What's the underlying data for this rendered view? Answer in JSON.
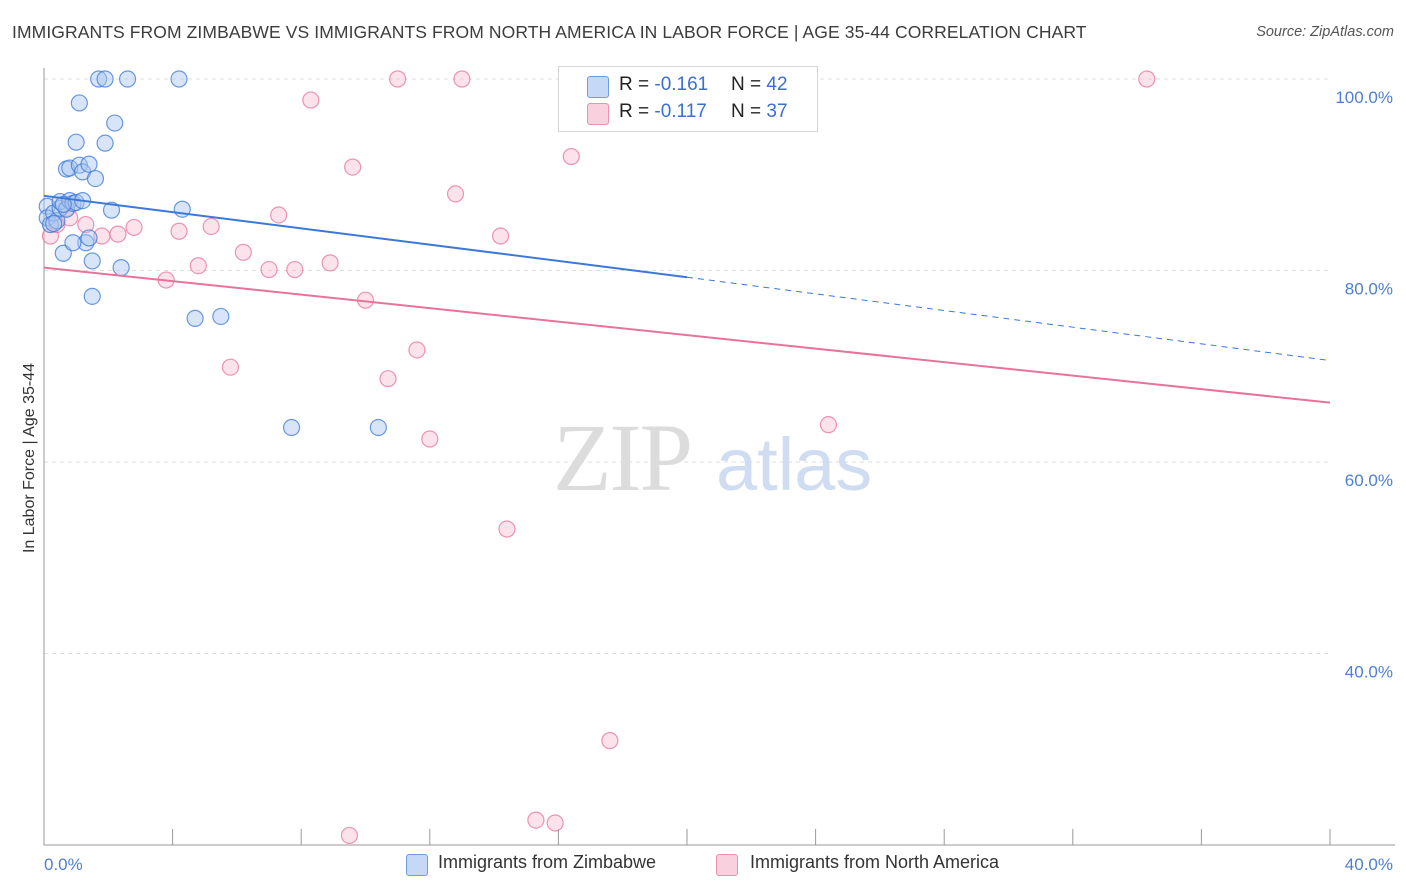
{
  "header": {
    "title": "IMMIGRANTS FROM ZIMBABWE VS IMMIGRANTS FROM NORTH AMERICA IN LABOR FORCE | AGE 35-44 CORRELATION CHART",
    "source": "Source: ZipAtlas.com"
  },
  "legend_top": {
    "rows": [
      {
        "r_label": "R = ",
        "r_value": "-0.161",
        "n_label": "N = ",
        "n_value": "42"
      },
      {
        "r_label": "R = ",
        "r_value": "-0.117",
        "n_label": "N = ",
        "n_value": "37"
      }
    ]
  },
  "legend_bottom": {
    "items": [
      {
        "label": "Immigrants from Zimbabwe"
      },
      {
        "label": "Immigrants from North America"
      }
    ]
  },
  "watermark": {
    "zip": "ZIP",
    "atlas": "atlas"
  },
  "colors": {
    "blue": "#3b78d8",
    "blue_fill": "#a9c6f0",
    "pink": "#e8739a",
    "pink_fill": "#f6bfd2",
    "tick_text": "#4f7fd0",
    "grid": "#dddddd"
  },
  "chart_data": {
    "type": "scatter",
    "ylabel": "In Labor Force | Age 35-44",
    "xlim": [
      0,
      40
    ],
    "ylim": [
      20,
      100
    ],
    "x_tick_labels": [
      "0.0%",
      "40.0%"
    ],
    "y_ticks": [
      {
        "value": 100,
        "label": "100.0%"
      },
      {
        "value": 80,
        "label": "80.0%"
      },
      {
        "value": 60,
        "label": "60.0%"
      },
      {
        "value": 40,
        "label": "40.0%"
      }
    ],
    "grid": true,
    "series": [
      {
        "name": "Immigrants from Zimbabwe",
        "color": "#3b78d8",
        "fill": "#a9c6f0",
        "points": [
          [
            0.1,
            86.7
          ],
          [
            0.1,
            85.5
          ],
          [
            0.2,
            84.8
          ],
          [
            0.3,
            86.0
          ],
          [
            0.4,
            85.2
          ],
          [
            0.5,
            86.5
          ],
          [
            0.5,
            87.2
          ],
          [
            0.6,
            81.8
          ],
          [
            0.7,
            86.4
          ],
          [
            0.8,
            87.3
          ],
          [
            0.9,
            87.0
          ],
          [
            1.0,
            87.1
          ],
          [
            0.7,
            90.6
          ],
          [
            0.8,
            90.7
          ],
          [
            1.0,
            93.4
          ],
          [
            1.1,
            91.0
          ],
          [
            1.2,
            90.3
          ],
          [
            1.3,
            82.9
          ],
          [
            1.1,
            97.5
          ],
          [
            1.4,
            91.1
          ],
          [
            1.5,
            81.0
          ],
          [
            1.5,
            77.3
          ],
          [
            1.6,
            89.6
          ],
          [
            1.7,
            100.0
          ],
          [
            1.9,
            93.3
          ],
          [
            1.9,
            100.0
          ],
          [
            2.1,
            86.3
          ],
          [
            2.2,
            95.4
          ],
          [
            2.4,
            80.3
          ],
          [
            2.6,
            100.0
          ],
          [
            4.2,
            100.0
          ],
          [
            4.3,
            86.4
          ],
          [
            4.7,
            75.0
          ],
          [
            5.5,
            75.2
          ],
          [
            7.7,
            63.6
          ],
          [
            10.4,
            63.6
          ],
          [
            16.5,
            100.0
          ],
          [
            1.4,
            83.4
          ],
          [
            0.3,
            84.9
          ],
          [
            0.6,
            86.9
          ],
          [
            1.2,
            87.3
          ],
          [
            0.9,
            82.9
          ]
        ],
        "trend": {
          "x_start": 0,
          "y_start": 87.8,
          "x_solid_end": 20,
          "y_solid_end": 79.3,
          "x_end": 40,
          "y_end": 70.6
        }
      },
      {
        "name": "Immigrants from North America",
        "color": "#e8739a",
        "fill": "#f6bfd2",
        "points": [
          [
            0.2,
            83.6
          ],
          [
            0.4,
            84.8
          ],
          [
            0.7,
            86.5
          ],
          [
            0.8,
            85.5
          ],
          [
            1.3,
            84.8
          ],
          [
            1.8,
            83.6
          ],
          [
            2.3,
            83.8
          ],
          [
            2.8,
            84.5
          ],
          [
            3.8,
            79.0
          ],
          [
            4.2,
            84.1
          ],
          [
            4.8,
            80.5
          ],
          [
            5.2,
            84.6
          ],
          [
            5.8,
            69.9
          ],
          [
            6.2,
            81.9
          ],
          [
            7.0,
            80.1
          ],
          [
            7.3,
            85.8
          ],
          [
            7.8,
            80.1
          ],
          [
            8.3,
            97.8
          ],
          [
            8.9,
            80.8
          ],
          [
            9.5,
            21.0
          ],
          [
            9.6,
            90.8
          ],
          [
            10.0,
            76.9
          ],
          [
            10.7,
            68.7
          ],
          [
            11.0,
            100.0
          ],
          [
            11.6,
            71.7
          ],
          [
            12.0,
            62.4
          ],
          [
            12.8,
            88.0
          ],
          [
            13.0,
            100.0
          ],
          [
            14.2,
            83.6
          ],
          [
            14.4,
            53.0
          ],
          [
            15.3,
            22.6
          ],
          [
            15.9,
            22.3
          ],
          [
            16.4,
            91.9
          ],
          [
            17.6,
            30.9
          ],
          [
            20.8,
            100.0
          ],
          [
            24.4,
            63.9
          ],
          [
            34.3,
            100.0
          ]
        ],
        "trend": {
          "x_start": 0,
          "y_start": 80.3,
          "x_end": 40,
          "y_end": 66.2
        }
      }
    ]
  }
}
